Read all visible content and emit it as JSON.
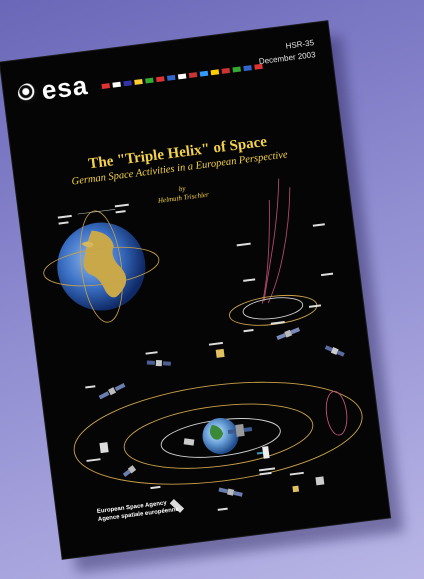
{
  "cover": {
    "logo_text": "esa",
    "series_number": "HSR-35",
    "series_date": "December 2003",
    "title": "The \"Triple Helix\" of Space",
    "subtitle": "German Space Activities in a European Perspective",
    "by_label": "by",
    "author": "Helmuth Trischler",
    "agency_en": "European Space Agency",
    "agency_fr": "Agence spatiale européenne"
  },
  "colors": {
    "background": "#8e8bd0",
    "cover": "#050505",
    "title": "#f4d24a",
    "orbit": "#c9a24a",
    "helix": "#b04a6a"
  },
  "flag_colors": [
    "#d33",
    "#fff",
    "#33a",
    "#fc3",
    "#3a3",
    "#d33",
    "#36c",
    "#fff",
    "#c33",
    "#39f",
    "#fc0",
    "#c33",
    "#3a3",
    "#36c",
    "#d33"
  ]
}
